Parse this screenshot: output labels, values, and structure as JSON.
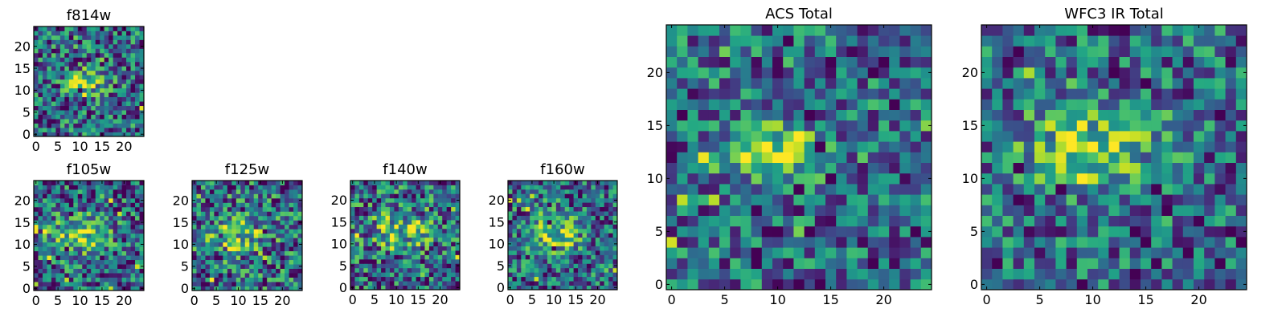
{
  "chart_data": [
    {
      "type": "heatmap",
      "title": "f814w",
      "xticks": [
        "0",
        "5",
        "10",
        "15",
        "20"
      ],
      "yticks": [
        "0",
        "5",
        "10",
        "15",
        "20"
      ],
      "xlim": [
        0,
        25
      ],
      "ylim": [
        0,
        25
      ],
      "grid": false,
      "colormap": "viridis",
      "seed": 11,
      "source": {
        "cx": 10.5,
        "cy": 12,
        "rx": 3.2,
        "ry": 1.8,
        "amp": 0.55
      },
      "noise": 0.62
    },
    {
      "type": "heatmap",
      "title": "f105w",
      "xticks": [
        "0",
        "5",
        "10",
        "15",
        "20"
      ],
      "yticks": [
        "0",
        "5",
        "10",
        "15",
        "20"
      ],
      "xlim": [
        0,
        25
      ],
      "ylim": [
        0,
        25
      ],
      "grid": false,
      "colormap": "viridis",
      "seed": 23,
      "source": {
        "cx": 10,
        "cy": 12.5,
        "rx": 4.5,
        "ry": 3.0,
        "amp": 0.45
      },
      "noise": 0.6
    },
    {
      "type": "heatmap",
      "title": "f125w",
      "xticks": [
        "0",
        "5",
        "10",
        "15",
        "20"
      ],
      "yticks": [
        "0",
        "5",
        "10",
        "15",
        "20"
      ],
      "xlim": [
        0,
        25
      ],
      "ylim": [
        0,
        25
      ],
      "grid": false,
      "colormap": "viridis",
      "seed": 37,
      "source": {
        "cx": 9.5,
        "cy": 12,
        "rx": 5.0,
        "ry": 3.5,
        "amp": 0.32
      },
      "noise": 0.65
    },
    {
      "type": "heatmap",
      "title": "f140w",
      "xticks": [
        "0",
        "5",
        "10",
        "15",
        "20"
      ],
      "yticks": [
        "0",
        "5",
        "10",
        "15",
        "20"
      ],
      "xlim": [
        0,
        25
      ],
      "ylim": [
        0,
        25
      ],
      "grid": false,
      "colormap": "viridis",
      "seed": 53,
      "source": {
        "cx": 11,
        "cy": 13,
        "rx": 5.5,
        "ry": 3.5,
        "amp": 0.35
      },
      "noise": 0.65
    },
    {
      "type": "heatmap",
      "title": "f160w",
      "xticks": [
        "0",
        "5",
        "10",
        "15",
        "20"
      ],
      "yticks": [
        "0",
        "5",
        "10",
        "15",
        "20"
      ],
      "xlim": [
        0,
        25
      ],
      "ylim": [
        0,
        25
      ],
      "grid": false,
      "colormap": "viridis",
      "seed": 71,
      "source": {
        "cx": 10,
        "cy": 12,
        "rx": 4.5,
        "ry": 3.5,
        "amp": 0.42
      },
      "noise": 0.6
    },
    {
      "type": "heatmap",
      "title": "ACS Total",
      "xticks": [
        "0",
        "5",
        "10",
        "15",
        "20"
      ],
      "yticks": [
        "0",
        "5",
        "10",
        "15",
        "20"
      ],
      "xlim": [
        0,
        25
      ],
      "ylim": [
        0,
        25
      ],
      "grid": false,
      "colormap": "viridis",
      "seed": 89,
      "source": {
        "cx": 10,
        "cy": 12.5,
        "rx": 3.6,
        "ry": 2.0,
        "amp": 0.55
      },
      "noise": 0.55
    },
    {
      "type": "heatmap",
      "title": "WFC3 IR Total",
      "xticks": [
        "0",
        "5",
        "10",
        "15",
        "20"
      ],
      "yticks": [
        "0",
        "5",
        "10",
        "15",
        "20"
      ],
      "xlim": [
        0,
        25
      ],
      "ylim": [
        0,
        25
      ],
      "grid": false,
      "colormap": "viridis",
      "seed": 97,
      "source": {
        "cx": 10,
        "cy": 13,
        "rx": 5.0,
        "ry": 3.0,
        "amp": 0.42
      },
      "noise": 0.55
    }
  ]
}
